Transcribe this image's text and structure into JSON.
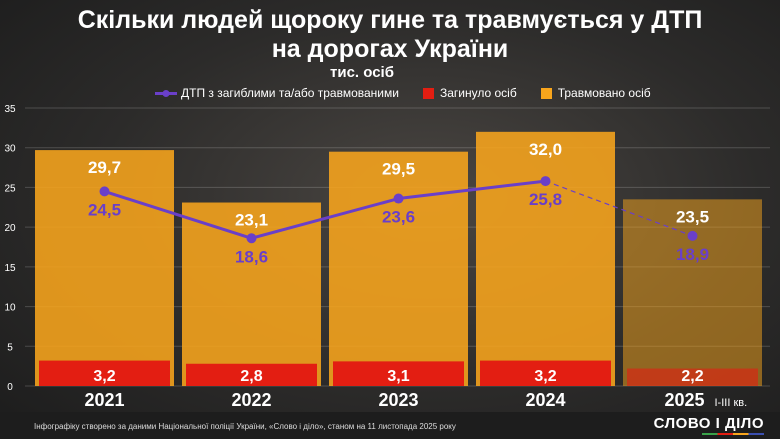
{
  "title_line1": "Скільки людей щороку гине та травмується у ДТП",
  "title_line2": "на дорогах України",
  "unit": "тис. осіб",
  "footer_note": "Інфографіку створено за даними Національної поліції України, «Слово і діло», станом на 11 листопада 2025 року",
  "logo": "СЛОВО І ДІЛО",
  "chart_data": {
    "type": "bar",
    "categories": [
      "2021",
      "2022",
      "2023",
      "2024",
      "2025"
    ],
    "category_suffix": {
      "2025": "I-III кв."
    },
    "ylim": [
      0,
      35
    ],
    "yticks": [
      0,
      5,
      10,
      15,
      20,
      25,
      30,
      35
    ],
    "grid": true,
    "legend_position": "top",
    "series": [
      {
        "name": "ДТП з загиблими та/або травмованими",
        "kind": "line",
        "color": "#6a3fc9",
        "values": [
          24.5,
          18.6,
          23.6,
          25.8,
          18.9
        ],
        "labels": [
          "24,5",
          "18,6",
          "23,6",
          "25,8",
          "18,9"
        ]
      },
      {
        "name": "Загинуло осіб",
        "kind": "bar",
        "color": "#e31e12",
        "values": [
          3.2,
          2.8,
          3.1,
          3.2,
          2.2
        ],
        "labels": [
          "3,2",
          "2,8",
          "3,1",
          "3,2",
          "2,2"
        ]
      },
      {
        "name": "Травмовано осіб",
        "kind": "bar",
        "color": "#f8a51c",
        "values": [
          29.7,
          23.1,
          29.5,
          32.0,
          23.5
        ],
        "labels": [
          "29,7",
          "23,1",
          "29,5",
          "32,0",
          "23,5"
        ]
      }
    ]
  }
}
